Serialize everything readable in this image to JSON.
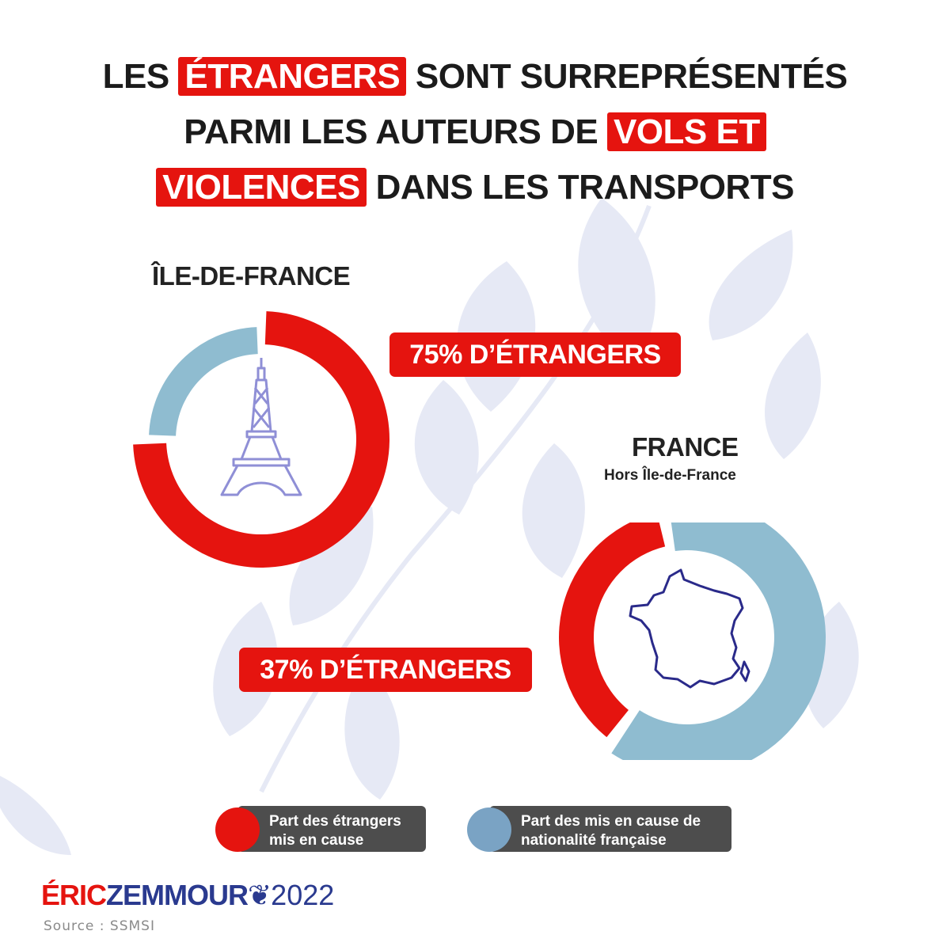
{
  "title": {
    "line1_highlight": "ÉTRANGERS",
    "line1_text": "SONT SURREPRÉSENTÉS",
    "line1_prefix": "LES",
    "line2_text": "PARMI LES AUTEURS DE",
    "line2_highlight": "VOLS ET",
    "line3_highlight": "VIOLENCES",
    "line3_text": "DANS LES TRANSPORTS"
  },
  "chart_data": [
    {
      "type": "pie",
      "title": "ÎLE-DE-FRANCE",
      "label": "75% D’ÉTRANGERS",
      "categories": [
        "Part des étrangers mis en cause",
        "Part des mis en cause de nationalité française"
      ],
      "values": [
        75,
        25
      ],
      "icon": "eiffel-tower-icon"
    },
    {
      "type": "pie",
      "title": "FRANCE",
      "subtitle": "Hors Île-de-France",
      "label": "37% D’ÉTRANGERS",
      "categories": [
        "Part des étrangers mis en cause",
        "Part des mis en cause de nationalité française"
      ],
      "values": [
        37,
        63
      ],
      "icon": "france-map-icon"
    }
  ],
  "legend": {
    "foreign": "Part des étrangers mis en cause",
    "french": "Part des mis en cause de nationalité française"
  },
  "colors": {
    "foreign": "#e5140f",
    "french": "#8fbcd0",
    "legend_french_dot": "#7aa3c4",
    "brand_red": "#e5140f",
    "brand_blue": "#2a3a8f"
  },
  "brand": {
    "part1": "ÉRIC",
    "part2": "ZEMMOUR",
    "part3": "2022"
  },
  "source": "Source : SSMSI"
}
